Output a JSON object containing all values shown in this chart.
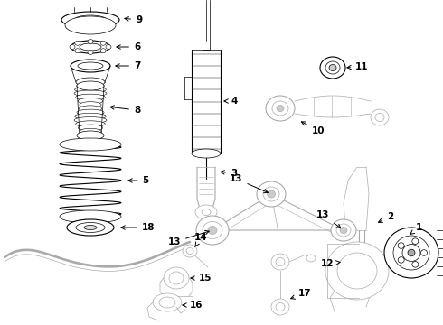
{
  "bg_color": "#ffffff",
  "lc": "#000000",
  "gray": "#888888",
  "dgray": "#555555",
  "lgray": "#aaaaaa",
  "fig_width": 4.9,
  "fig_height": 3.6,
  "dpi": 100,
  "label_fs": 7.5,
  "lw_thin": 0.5,
  "lw_med": 0.8,
  "lw_thick": 1.4
}
